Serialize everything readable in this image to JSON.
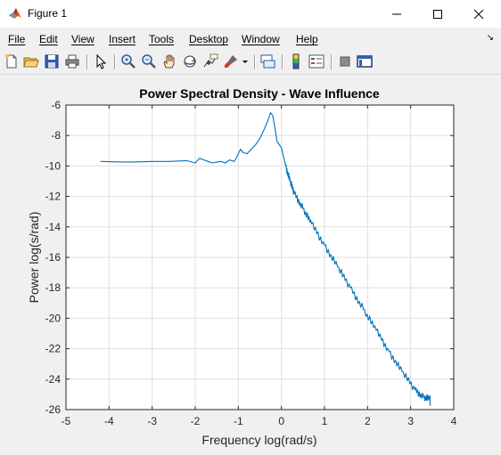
{
  "window": {
    "title": "Figure 1",
    "icon": "matlab-icon"
  },
  "menu": {
    "items": [
      "File",
      "Edit",
      "View",
      "Insert",
      "Tools",
      "Desktop",
      "Window",
      "Help"
    ],
    "dock_arrow": "↘"
  },
  "toolbar": {
    "buttons": [
      "new-figure-icon",
      "open-file-icon",
      "save-icon",
      "print-icon",
      "pointer-icon",
      "zoom-in-icon",
      "zoom-out-icon",
      "pan-hand-icon",
      "rotate-3d-icon",
      "data-cursor-icon",
      "brush-icon",
      "link-plot-icon",
      "colorbar-icon",
      "legend-icon",
      "hide-plot-tools-icon",
      "show-plot-tools-icon"
    ]
  },
  "chart_data": {
    "type": "line",
    "title": "Power Spectral Density - Wave Influence",
    "xlabel": "Frequency log(rad/s)",
    "ylabel": "Power log(s/rad)",
    "xlim": [
      -5,
      4
    ],
    "ylim": [
      -26,
      -6
    ],
    "xticks": [
      "-5",
      "-4",
      "-3",
      "-2",
      "-1",
      "0",
      "1",
      "2",
      "3",
      "4"
    ],
    "yticks": [
      "-6",
      "-8",
      "-10",
      "-12",
      "-14",
      "-16",
      "-18",
      "-20",
      "-22",
      "-24",
      "-26"
    ],
    "grid": true,
    "series": [
      {
        "color": "#0072bd",
        "x": [
          -4.2,
          -3.5,
          -3.0,
          -2.6,
          -2.2,
          -2.0,
          -1.9,
          -1.8,
          -1.7,
          -1.6,
          -1.5,
          -1.4,
          -1.3,
          -1.2,
          -1.1,
          -1.05,
          -1.0,
          -0.95,
          -0.9,
          -0.8,
          -0.7,
          -0.6,
          -0.5,
          -0.4,
          -0.3,
          -0.25,
          -0.2,
          -0.15,
          -0.1,
          0.0,
          0.1,
          0.2,
          0.3,
          0.5,
          0.7,
          1.0,
          1.3,
          1.6,
          1.9,
          2.2,
          2.5,
          2.8,
          3.1,
          3.3,
          3.45,
          3.45
        ],
        "y": [
          -9.7,
          -9.75,
          -9.7,
          -9.7,
          -9.65,
          -9.8,
          -9.5,
          -9.6,
          -9.7,
          -9.8,
          -9.75,
          -9.7,
          -9.8,
          -9.6,
          -9.7,
          -9.5,
          -9.2,
          -8.9,
          -9.1,
          -9.2,
          -8.9,
          -8.6,
          -8.2,
          -7.6,
          -6.9,
          -6.5,
          -6.7,
          -7.5,
          -8.4,
          -8.8,
          -10.0,
          -11.0,
          -11.8,
          -12.8,
          -13.8,
          -15.2,
          -16.6,
          -18.0,
          -19.4,
          -20.8,
          -22.2,
          -23.5,
          -24.7,
          -25.2,
          -25.3,
          -25.6
        ]
      }
    ]
  }
}
